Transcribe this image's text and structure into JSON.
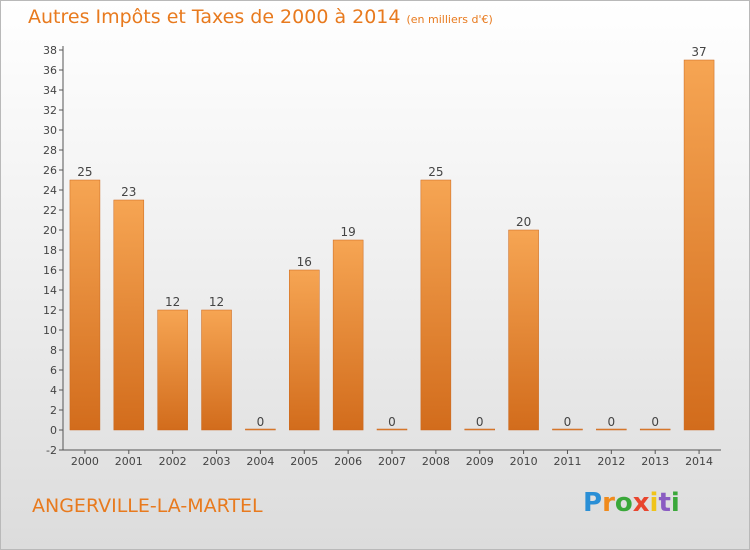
{
  "title": "Autres Impôts et Taxes de 2000 à 2014",
  "subtitle": "(en milliers d'€)",
  "commune": "ANGERVILLE-LA-MARTEL",
  "logo": [
    "P",
    "r",
    "o",
    "x",
    "i",
    "t",
    "i"
  ],
  "colors": {
    "title": "#e87a1e",
    "bar_light": "#f6a553",
    "bar_dark": "#d26c1c",
    "axis": "#555555"
  },
  "chart_data": {
    "type": "bar",
    "categories": [
      "2000",
      "2001",
      "2002",
      "2003",
      "2004",
      "2005",
      "2006",
      "2007",
      "2008",
      "2009",
      "2010",
      "2011",
      "2012",
      "2013",
      "2014"
    ],
    "values": [
      25,
      23,
      12,
      12,
      0,
      16,
      19,
      0,
      25,
      0,
      20,
      0,
      0,
      0,
      37
    ],
    "ylim": [
      -2,
      38
    ],
    "yticks": [
      -2,
      0,
      2,
      4,
      6,
      8,
      10,
      12,
      14,
      16,
      18,
      20,
      22,
      24,
      26,
      28,
      30,
      32,
      34,
      36,
      38
    ],
    "grid": false,
    "legend": "none",
    "data_labels": true
  }
}
